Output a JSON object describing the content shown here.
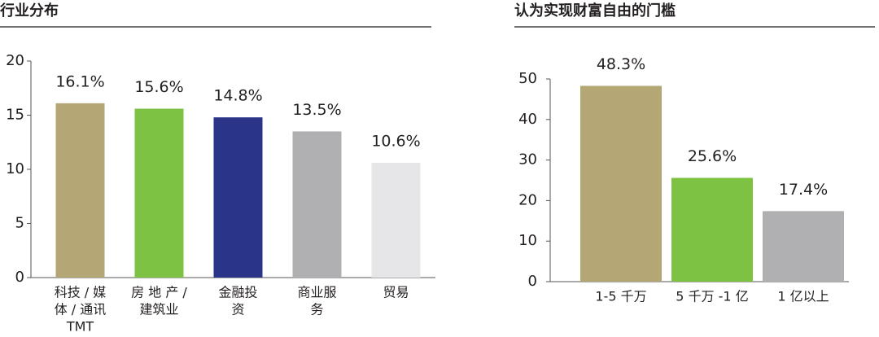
{
  "chart_data": [
    {
      "type": "bar",
      "title": "行业分布",
      "categories": [
        [
          "科技 / 媒",
          "体 / 通讯",
          "TMT"
        ],
        [
          "房 地 产 /",
          "建筑业"
        ],
        [
          "金融投",
          "资"
        ],
        [
          "商业服",
          "务"
        ],
        [
          "贸易"
        ]
      ],
      "values": [
        16.1,
        15.6,
        14.8,
        13.5,
        10.6
      ],
      "value_labels": [
        "16.1%",
        "15.6%",
        "14.8%",
        "13.5%",
        "10.6%"
      ],
      "colors": [
        "#b5a676",
        "#7dc243",
        "#2a3489",
        "#b0b0b2",
        "#e6e6e8"
      ],
      "ylim": [
        0,
        20
      ],
      "yticks": [
        0,
        5,
        10,
        15,
        20
      ]
    },
    {
      "type": "bar",
      "title": "认为实现财富自由的门槛",
      "categories": [
        [
          "1-5 千万"
        ],
        [
          "5 千万 -1 亿"
        ],
        [
          "1 亿以上"
        ]
      ],
      "values": [
        48.3,
        25.6,
        17.4
      ],
      "value_labels": [
        "48.3%",
        "25.6%",
        "17.4%"
      ],
      "colors": [
        "#b5a676",
        "#7dc243",
        "#b0b0b2"
      ],
      "ylim": [
        0,
        50
      ],
      "yticks": [
        0,
        10,
        20,
        30,
        40,
        50
      ]
    }
  ]
}
